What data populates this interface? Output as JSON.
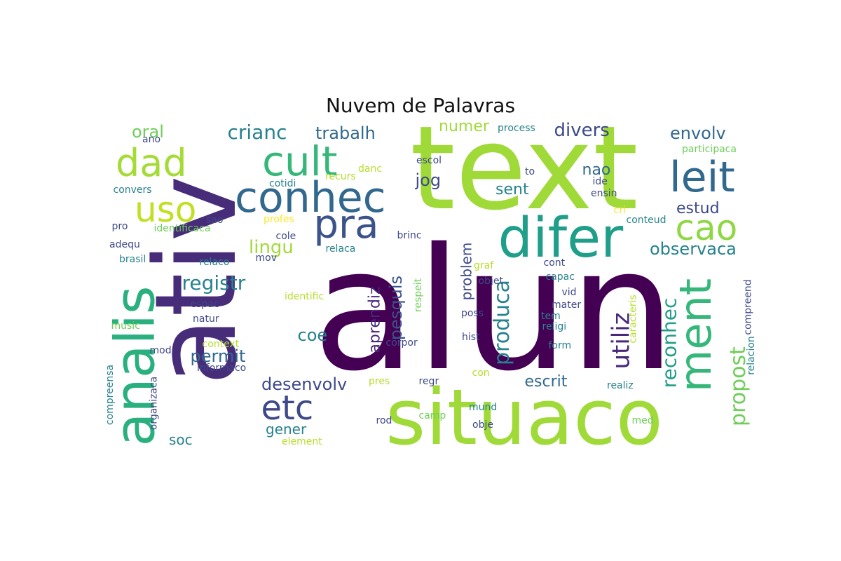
{
  "title": "Nuvem de Palavras",
  "palette": [
    "#440154",
    "#482878",
    "#3e4989",
    "#31688e",
    "#26828e",
    "#1f9e89",
    "#35b779",
    "#6ece58",
    "#b5de2b",
    "#fde725"
  ],
  "words": [
    {
      "text": "alun",
      "weight": 1.0,
      "color": "#440154",
      "rotate": 0
    },
    {
      "text": "text",
      "weight": 0.85,
      "color": "#a0da39",
      "rotate": 0
    },
    {
      "text": "ativ",
      "weight": 0.9,
      "color": "#472c7a",
      "rotate": 270
    },
    {
      "text": "situaco",
      "weight": 0.72,
      "color": "#a0da39",
      "rotate": 0
    },
    {
      "text": "difer",
      "weight": 0.45,
      "color": "#1f9e89",
      "rotate": 0
    },
    {
      "text": "analis",
      "weight": 0.5,
      "color": "#2ab07f",
      "rotate": 270
    },
    {
      "text": "conhec",
      "weight": 0.4,
      "color": "#31688e",
      "rotate": 0
    },
    {
      "text": "cult",
      "weight": 0.38,
      "color": "#35b779",
      "rotate": 0
    },
    {
      "text": "leit",
      "weight": 0.38,
      "color": "#31688e",
      "rotate": 0
    },
    {
      "text": "pra",
      "weight": 0.38,
      "color": "#3b528b",
      "rotate": 0
    },
    {
      "text": "dad",
      "weight": 0.33,
      "color": "#a5db36",
      "rotate": 0
    },
    {
      "text": "uso",
      "weight": 0.33,
      "color": "#c2df23",
      "rotate": 0
    },
    {
      "text": "cao",
      "weight": 0.33,
      "color": "#8fd744",
      "rotate": 0
    },
    {
      "text": "ment",
      "weight": 0.35,
      "color": "#35b779",
      "rotate": 270
    },
    {
      "text": "etc",
      "weight": 0.3,
      "color": "#3e4989",
      "rotate": 0
    },
    {
      "text": "utiliz",
      "weight": 0.22,
      "color": "#482878",
      "rotate": 270
    },
    {
      "text": "produca",
      "weight": 0.22,
      "color": "#26828e",
      "rotate": 270
    },
    {
      "text": "propost",
      "weight": 0.2,
      "color": "#6ece58",
      "rotate": 270
    },
    {
      "text": "reconhec",
      "weight": 0.18,
      "color": "#1f9e89",
      "rotate": 270
    },
    {
      "text": "registr",
      "weight": 0.17,
      "color": "#26828e",
      "rotate": 0
    },
    {
      "text": "crianc",
      "weight": 0.16,
      "color": "#26828e",
      "rotate": 0
    },
    {
      "text": "divers",
      "weight": 0.16,
      "color": "#3e4989",
      "rotate": 0
    },
    {
      "text": "observaca",
      "weight": 0.15,
      "color": "#26828e",
      "rotate": 0
    },
    {
      "text": "desenvolv",
      "weight": 0.15,
      "color": "#3e4989",
      "rotate": 0
    },
    {
      "text": "permit",
      "weight": 0.15,
      "color": "#31688e",
      "rotate": 0
    },
    {
      "text": "trabalh",
      "weight": 0.15,
      "color": "#31688e",
      "rotate": 0
    },
    {
      "text": "envolv",
      "weight": 0.15,
      "color": "#31688e",
      "rotate": 0
    },
    {
      "text": "lingu",
      "weight": 0.15,
      "color": "#a0da39",
      "rotate": 0
    },
    {
      "text": "escrit",
      "weight": 0.14,
      "color": "#31688e",
      "rotate": 0
    },
    {
      "text": "pesquis",
      "weight": 0.14,
      "color": "#3b528b",
      "rotate": 270
    },
    {
      "text": "aprendiz",
      "weight": 0.13,
      "color": "#482878",
      "rotate": 270
    },
    {
      "text": "problem",
      "weight": 0.12,
      "color": "#3e4989",
      "rotate": 270
    },
    {
      "text": "coe",
      "weight": 0.14,
      "color": "#26828e",
      "rotate": 0
    },
    {
      "text": "jog",
      "weight": 0.14,
      "color": "#3e4989",
      "rotate": 0
    },
    {
      "text": "nao",
      "weight": 0.13,
      "color": "#31688e",
      "rotate": 0
    },
    {
      "text": "sent",
      "weight": 0.13,
      "color": "#26828e",
      "rotate": 0
    },
    {
      "text": "estud",
      "weight": 0.13,
      "color": "#3e4989",
      "rotate": 0
    },
    {
      "text": "numer",
      "weight": 0.13,
      "color": "#a0da39",
      "rotate": 0
    },
    {
      "text": "oral",
      "weight": 0.13,
      "color": "#6ece58",
      "rotate": 0
    },
    {
      "text": "gener",
      "weight": 0.12,
      "color": "#26828e",
      "rotate": 0
    },
    {
      "text": "soc",
      "weight": 0.11,
      "color": "#26828e",
      "rotate": 0
    },
    {
      "text": "process",
      "weight": 0.07,
      "color": "#26828e",
      "rotate": 0
    },
    {
      "text": "participaca",
      "weight": 0.06,
      "color": "#6ece58",
      "rotate": 0
    },
    {
      "text": "escol",
      "weight": 0.065,
      "color": "#3e4989",
      "rotate": 0
    },
    {
      "text": "danc",
      "weight": 0.06,
      "color": "#b5de2b",
      "rotate": 0
    },
    {
      "text": "recurs",
      "weight": 0.065,
      "color": "#b5de2b",
      "rotate": 0
    },
    {
      "text": "cotidi",
      "weight": 0.065,
      "color": "#26828e",
      "rotate": 0
    },
    {
      "text": "to",
      "weight": 0.06,
      "color": "#3e4989",
      "rotate": 0
    },
    {
      "text": "ide",
      "weight": 0.06,
      "color": "#3e4989",
      "rotate": 0
    },
    {
      "text": "ensin",
      "weight": 0.06,
      "color": "#3e4989",
      "rotate": 0
    },
    {
      "text": "cri",
      "weight": 0.06,
      "color": "#fde725",
      "rotate": 0
    },
    {
      "text": "conteud",
      "weight": 0.065,
      "color": "#26828e",
      "rotate": 0
    },
    {
      "text": "ano",
      "weight": 0.06,
      "color": "#3e4989",
      "rotate": 0
    },
    {
      "text": "convers",
      "weight": 0.065,
      "color": "#26828e",
      "rotate": 0
    },
    {
      "text": "sao",
      "weight": 0.065,
      "color": "#3e4989",
      "rotate": 0
    },
    {
      "text": "pro",
      "weight": 0.065,
      "color": "#3e4989",
      "rotate": 0
    },
    {
      "text": "identificaca",
      "weight": 0.065,
      "color": "#6ece58",
      "rotate": 0
    },
    {
      "text": "profes",
      "weight": 0.065,
      "color": "#fde725",
      "rotate": 0
    },
    {
      "text": "cole",
      "weight": 0.065,
      "color": "#3e4989",
      "rotate": 0
    },
    {
      "text": "brinc",
      "weight": 0.065,
      "color": "#3e4989",
      "rotate": 0
    },
    {
      "text": "adequ",
      "weight": 0.065,
      "color": "#3e4989",
      "rotate": 0
    },
    {
      "text": "relaca",
      "weight": 0.065,
      "color": "#26828e",
      "rotate": 0
    },
    {
      "text": "brasil",
      "weight": 0.065,
      "color": "#26828e",
      "rotate": 0
    },
    {
      "text": "relaco",
      "weight": 0.065,
      "color": "#26828e",
      "rotate": 0
    },
    {
      "text": "mov",
      "weight": 0.065,
      "color": "#3e4989",
      "rotate": 0
    },
    {
      "text": "graf",
      "weight": 0.065,
      "color": "#b5de2b",
      "rotate": 0
    },
    {
      "text": "cont",
      "weight": 0.065,
      "color": "#3e4989",
      "rotate": 0
    },
    {
      "text": "capac",
      "weight": 0.065,
      "color": "#26828e",
      "rotate": 0
    },
    {
      "text": "objet",
      "weight": 0.065,
      "color": "#3e4989",
      "rotate": 0
    },
    {
      "text": "respeit",
      "weight": 0.06,
      "color": "#6ece58",
      "rotate": 270
    },
    {
      "text": "identific",
      "weight": 0.065,
      "color": "#b5de2b",
      "rotate": 0
    },
    {
      "text": "vid",
      "weight": 0.065,
      "color": "#3e4989",
      "rotate": 0
    },
    {
      "text": "mater",
      "weight": 0.065,
      "color": "#3e4989",
      "rotate": 0
    },
    {
      "text": "espac",
      "weight": 0.065,
      "color": "#3e4989",
      "rotate": 0
    },
    {
      "text": "poss",
      "weight": 0.065,
      "color": "#3e4989",
      "rotate": 0
    },
    {
      "text": "tem",
      "weight": 0.065,
      "color": "#26828e",
      "rotate": 0
    },
    {
      "text": "natur",
      "weight": 0.065,
      "color": "#3e4989",
      "rotate": 0
    },
    {
      "text": "religi",
      "weight": 0.065,
      "color": "#26828e",
      "rotate": 0
    },
    {
      "text": "music",
      "weight": 0.065,
      "color": "#6ece58",
      "rotate": 0
    },
    {
      "text": "hist",
      "weight": 0.065,
      "color": "#3e4989",
      "rotate": 0
    },
    {
      "text": "corpor",
      "weight": 0.065,
      "color": "#3e4989",
      "rotate": 0
    },
    {
      "text": "form",
      "weight": 0.065,
      "color": "#26828e",
      "rotate": 0
    },
    {
      "text": "caracteris",
      "weight": 0.06,
      "color": "#b5de2b",
      "rotate": 270
    },
    {
      "text": "compreend",
      "weight": 0.06,
      "color": "#3e4989",
      "rotate": 270
    },
    {
      "text": "relacion",
      "weight": 0.06,
      "color": "#26828e",
      "rotate": 270
    },
    {
      "text": "mod",
      "weight": 0.065,
      "color": "#3e4989",
      "rotate": 0
    },
    {
      "text": "context",
      "weight": 0.065,
      "color": "#b5de2b",
      "rotate": 0
    },
    {
      "text": "informaco",
      "weight": 0.065,
      "color": "#3e4989",
      "rotate": 0
    },
    {
      "text": "con",
      "weight": 0.065,
      "color": "#b5de2b",
      "rotate": 0
    },
    {
      "text": "pres",
      "weight": 0.065,
      "color": "#b5de2b",
      "rotate": 0
    },
    {
      "text": "regr",
      "weight": 0.065,
      "color": "#3e4989",
      "rotate": 0
    },
    {
      "text": "realiz",
      "weight": 0.065,
      "color": "#26828e",
      "rotate": 0
    },
    {
      "text": "compreensa",
      "weight": 0.06,
      "color": "#26828e",
      "rotate": 270
    },
    {
      "text": "organizaca",
      "weight": 0.06,
      "color": "#3e4989",
      "rotate": 270
    },
    {
      "text": "mund",
      "weight": 0.065,
      "color": "#26828e",
      "rotate": 0
    },
    {
      "text": "rod",
      "weight": 0.065,
      "color": "#3e4989",
      "rotate": 0
    },
    {
      "text": "camp",
      "weight": 0.065,
      "color": "#6ece58",
      "rotate": 0
    },
    {
      "text": "obje",
      "weight": 0.065,
      "color": "#3e4989",
      "rotate": 0
    },
    {
      "text": "med",
      "weight": 0.065,
      "color": "#6ece58",
      "rotate": 0
    },
    {
      "text": "element",
      "weight": 0.065,
      "color": "#b5de2b",
      "rotate": 0
    }
  ]
}
